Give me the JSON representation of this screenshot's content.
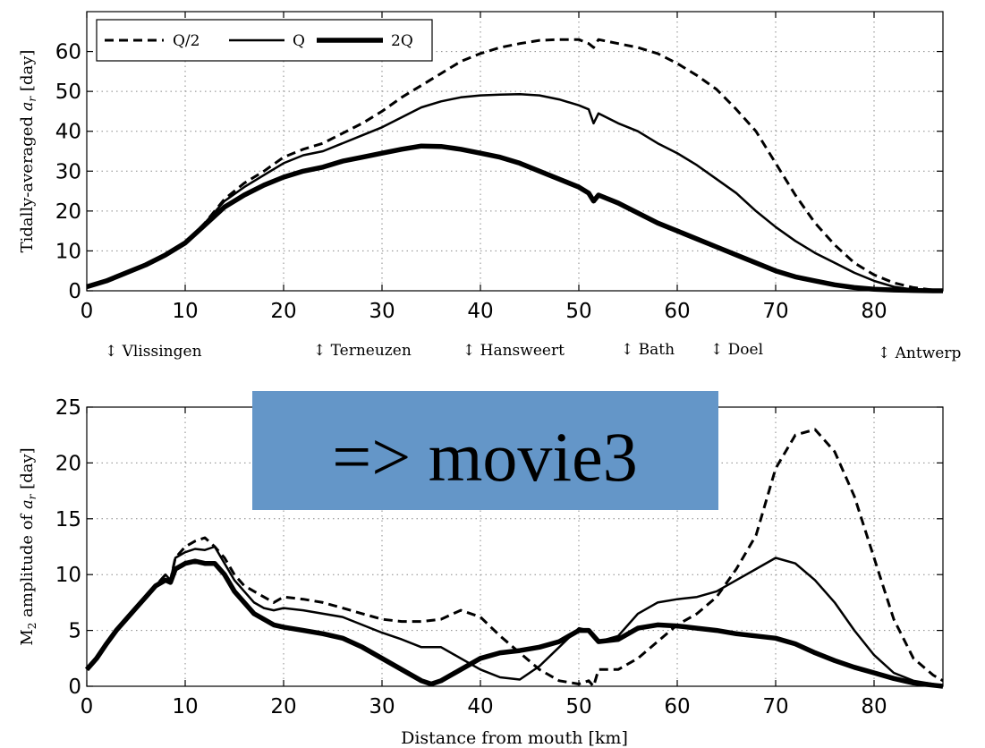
{
  "chart_data": [
    {
      "type": "line",
      "ylabel": "Tidally-averaged a_r [day]",
      "ylabel_main": "Tidally-averaged ",
      "ylabel_var": "a",
      "ylabel_sub": "r",
      "ylabel_unit": "[day]",
      "xlabel": "",
      "xlim": [
        0,
        87
      ],
      "ylim": [
        0,
        70
      ],
      "xticks": [
        0,
        10,
        20,
        30,
        40,
        50,
        60,
        70,
        80
      ],
      "yticks": [
        0,
        10,
        20,
        30,
        40,
        50,
        60
      ],
      "grid": true,
      "legend_position": "top-left",
      "legend": [
        "Q/2",
        "Q",
        "2Q"
      ],
      "series": [
        {
          "name": "Q/2",
          "style": "dashed",
          "x": [
            0,
            2,
            4,
            6,
            8,
            10,
            12,
            14,
            16,
            18,
            20,
            22,
            24,
            26,
            28,
            30,
            32,
            34,
            36,
            38,
            40,
            42,
            44,
            46,
            48,
            50,
            51,
            51.5,
            52,
            54,
            56,
            58,
            60,
            62,
            64,
            66,
            68,
            70,
            72,
            74,
            76,
            78,
            80,
            82,
            84,
            86,
            87
          ],
          "y": [
            1,
            2.5,
            4.5,
            6.5,
            9,
            12,
            17,
            23,
            27,
            30,
            33.5,
            35.5,
            37,
            39.5,
            42,
            45,
            48.5,
            51.5,
            54.5,
            57.5,
            59.5,
            61,
            62,
            62.8,
            63,
            63,
            62,
            61,
            63,
            62,
            61,
            59.5,
            57,
            54,
            50.5,
            45.5,
            40,
            32,
            24,
            17,
            11.5,
            7,
            4,
            2,
            0.8,
            0.2,
            0
          ]
        },
        {
          "name": "Q",
          "style": "solid",
          "x": [
            0,
            2,
            4,
            6,
            8,
            10,
            12,
            14,
            16,
            18,
            20,
            22,
            24,
            26,
            28,
            30,
            32,
            34,
            36,
            38,
            40,
            42,
            44,
            46,
            48,
            50,
            51,
            51.5,
            52,
            54,
            56,
            58,
            60,
            62,
            64,
            66,
            68,
            70,
            72,
            74,
            76,
            78,
            80,
            82,
            84,
            86,
            87
          ],
          "y": [
            1,
            2.5,
            4.5,
            6.5,
            9,
            12,
            17,
            22.5,
            26,
            29,
            32,
            34,
            35,
            37,
            39,
            41,
            43.5,
            46,
            47.5,
            48.5,
            49,
            49.2,
            49.3,
            49,
            48,
            46.5,
            45.5,
            42,
            44.5,
            42,
            40,
            37,
            34.5,
            31.5,
            28,
            24.5,
            20,
            16,
            12.5,
            9.5,
            7,
            4.5,
            2.5,
            1,
            0.3,
            0.1,
            0
          ]
        },
        {
          "name": "2Q",
          "style": "thick",
          "x": [
            0,
            2,
            4,
            6,
            8,
            10,
            12,
            14,
            16,
            18,
            20,
            22,
            24,
            26,
            28,
            30,
            32,
            34,
            36,
            38,
            40,
            42,
            44,
            46,
            48,
            50,
            51,
            51.5,
            52,
            54,
            56,
            58,
            60,
            62,
            64,
            66,
            68,
            70,
            72,
            74,
            76,
            78,
            80,
            82,
            84,
            86,
            87
          ],
          "y": [
            1,
            2.5,
            4.5,
            6.5,
            9,
            12,
            16.5,
            21,
            24,
            26.5,
            28.5,
            30,
            31,
            32.5,
            33.5,
            34.5,
            35.5,
            36.3,
            36.2,
            35.5,
            34.5,
            33.5,
            32,
            30,
            28,
            26,
            24.5,
            22.5,
            24,
            22,
            19.5,
            17,
            15,
            13,
            11,
            9,
            7,
            5,
            3.5,
            2.5,
            1.5,
            0.8,
            0.4,
            0.2,
            0.1,
            0,
            0
          ]
        }
      ],
      "annotations": [
        {
          "x": 2,
          "label": "↕ Vlissingen"
        },
        {
          "x": 23,
          "label": "↕ Terneuzen"
        },
        {
          "x": 38,
          "label": "↕ Hansweert"
        },
        {
          "x": 54,
          "label": "↕ Bath"
        },
        {
          "x": 63,
          "label": "↕ Doel"
        },
        {
          "x": 80,
          "label": "↕ Antwerp"
        }
      ]
    },
    {
      "type": "line",
      "ylabel": "M2 amplitude of a_r [day]",
      "ylabel_main": "M",
      "ylabel_main_sub": "2",
      "ylabel_mid": " amplitude of ",
      "ylabel_var": "a",
      "ylabel_sub": "r",
      "ylabel_unit": "[day]",
      "xlabel": "Distance from mouth [km]",
      "xlim": [
        0,
        87
      ],
      "ylim": [
        0,
        25
      ],
      "xticks": [
        0,
        10,
        20,
        30,
        40,
        50,
        60,
        70,
        80
      ],
      "yticks": [
        0,
        5,
        10,
        15,
        20,
        25
      ],
      "grid": true,
      "series": [
        {
          "name": "Q/2",
          "style": "dashed",
          "x": [
            0,
            1,
            2,
            3,
            4,
            5,
            6,
            7,
            8,
            8.5,
            9,
            10,
            11,
            12,
            13,
            14,
            15,
            16,
            17,
            18,
            19,
            20,
            22,
            24,
            26,
            28,
            30,
            32,
            34,
            36,
            38,
            40,
            42,
            44,
            46,
            48,
            50,
            51,
            51.5,
            52,
            54,
            56,
            58,
            60,
            62,
            64,
            66,
            68,
            70,
            72,
            74,
            76,
            78,
            80,
            82,
            84,
            86,
            87
          ],
          "y": [
            1.5,
            2.5,
            3.8,
            5,
            6,
            7,
            8,
            9,
            10,
            9.5,
            11.5,
            12.5,
            13,
            13.3,
            12.5,
            11.5,
            10,
            9,
            8.5,
            8,
            7.5,
            8,
            7.8,
            7.5,
            7,
            6.5,
            6,
            5.8,
            5.8,
            6,
            6.8,
            6.2,
            4.5,
            3,
            1.5,
            0.5,
            0.2,
            0.5,
            0,
            1.5,
            1.5,
            2.5,
            4,
            5.5,
            6.5,
            8,
            10.5,
            13.5,
            19.5,
            22.5,
            23,
            21,
            17,
            11.5,
            6,
            2.5,
            1,
            0.5
          ]
        },
        {
          "name": "Q",
          "style": "solid",
          "x": [
            0,
            1,
            2,
            3,
            4,
            5,
            6,
            7,
            8,
            8.5,
            9,
            10,
            11,
            12,
            13,
            14,
            15,
            16,
            17,
            18,
            19,
            20,
            22,
            24,
            26,
            28,
            30,
            32,
            34,
            36,
            38,
            40,
            42,
            44,
            46,
            48,
            50,
            51,
            52,
            54,
            56,
            58,
            60,
            62,
            64,
            66,
            68,
            70,
            72,
            74,
            76,
            78,
            80,
            82,
            84,
            86,
            87
          ],
          "y": [
            1.5,
            2.5,
            3.8,
            5,
            6,
            7,
            8,
            9,
            10,
            9.5,
            11.5,
            12,
            12.3,
            12.2,
            12.5,
            11,
            9.5,
            8.5,
            7.5,
            7,
            6.8,
            7,
            6.8,
            6.5,
            6.2,
            5.5,
            4.8,
            4.2,
            3.5,
            3.5,
            2.5,
            1.5,
            0.8,
            0.6,
            1.8,
            3.5,
            5.2,
            5,
            4,
            4.5,
            6.5,
            7.5,
            7.8,
            8,
            8.5,
            9.5,
            10.5,
            11.5,
            11,
            9.5,
            7.5,
            5,
            2.8,
            1.2,
            0.5,
            0.2,
            0
          ]
        },
        {
          "name": "2Q",
          "style": "thick",
          "x": [
            0,
            1,
            2,
            3,
            4,
            5,
            6,
            7,
            8,
            8.5,
            9,
            10,
            11,
            12,
            13,
            14,
            15,
            16,
            17,
            18,
            19,
            20,
            22,
            24,
            26,
            28,
            30,
            32,
            34,
            35,
            36,
            38,
            40,
            42,
            44,
            46,
            48,
            50,
            51,
            52,
            54,
            56,
            58,
            60,
            62,
            64,
            66,
            68,
            70,
            72,
            74,
            76,
            78,
            80,
            82,
            84,
            86,
            87
          ],
          "y": [
            1.5,
            2.5,
            3.8,
            5,
            6,
            7,
            8,
            9,
            9.5,
            9.3,
            10.5,
            11,
            11.2,
            11,
            11,
            10,
            8.5,
            7.5,
            6.5,
            6,
            5.5,
            5.3,
            5,
            4.7,
            4.3,
            3.5,
            2.5,
            1.5,
            0.5,
            0.2,
            0.5,
            1.5,
            2.5,
            3,
            3.2,
            3.5,
            4,
            5,
            5,
            4,
            4.2,
            5.2,
            5.5,
            5.4,
            5.2,
            5,
            4.7,
            4.5,
            4.3,
            3.8,
            3,
            2.3,
            1.7,
            1.2,
            0.7,
            0.3,
            0.1,
            0
          ]
        }
      ]
    }
  ],
  "overlay": {
    "label": "=> movie3",
    "color": "#6496c8"
  }
}
